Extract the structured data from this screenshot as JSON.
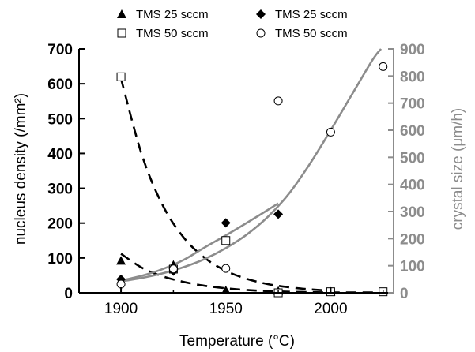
{
  "chart_data": {
    "type": "scatter",
    "xlabel": "Temperature (°C)",
    "ylabel_left": "nucleus density (/mm²)",
    "ylabel_right": "crystal size (μm/h)",
    "xlim": [
      1880,
      2030
    ],
    "ylim_left": [
      0,
      700
    ],
    "ylim_right": [
      0,
      900
    ],
    "x_ticks": [
      1900,
      1950,
      2000
    ],
    "y_ticks_left": [
      0,
      100,
      200,
      300,
      400,
      500,
      600,
      700
    ],
    "y_ticks_right": [
      0,
      100,
      200,
      300,
      400,
      500,
      600,
      700,
      800,
      900
    ],
    "grid": false,
    "legend_position": "top",
    "colors": {
      "left_axis": "#000000",
      "right_axis": "#8c8c8c",
      "fit_curve": "#8c8c8c"
    },
    "series": [
      {
        "name": "TMS 25 sccm",
        "marker": "filled-triangle",
        "axis": "left",
        "x": [
          1900,
          1925,
          1950,
          1975,
          2000
        ],
        "y": [
          92,
          80,
          7,
          5,
          3
        ]
      },
      {
        "name": "TMS 50 sccm",
        "marker": "open-square",
        "axis": "left",
        "x": [
          1900,
          1925,
          1950,
          1975,
          2000,
          2025
        ],
        "y": [
          620,
          68,
          150,
          0,
          3,
          3
        ]
      },
      {
        "name": "TMS 25 sccm",
        "marker": "filled-diamond",
        "axis": "right",
        "x": [
          1900,
          1925,
          1950,
          1975
        ],
        "y": [
          50,
          80,
          258,
          290
        ]
      },
      {
        "name": "TMS 50 sccm",
        "marker": "open-circle",
        "axis": "right",
        "x": [
          1900,
          1925,
          1950,
          1975,
          2000,
          2025
        ],
        "y": [
          32,
          88,
          90,
          708,
          593,
          835
        ]
      }
    ],
    "fit_curves": [
      {
        "style": "dashed",
        "axis": "left",
        "x": [
          1900,
          1910,
          1920,
          1930,
          1940,
          1950,
          1960,
          1970,
          1980,
          1990,
          2000
        ],
        "y": [
          615,
          395,
          250,
          158,
          100,
          63,
          40,
          25,
          16,
          10,
          6
        ]
      },
      {
        "style": "dashed",
        "axis": "left",
        "x": [
          1900,
          1910,
          1920,
          1930,
          1940,
          1950,
          1960,
          1970,
          1980,
          1990,
          2000,
          2010,
          2020,
          2025
        ],
        "y": [
          112,
          72,
          47,
          31,
          20,
          13,
          8,
          5,
          3,
          2,
          1,
          1,
          1,
          0
        ]
      },
      {
        "style": "solid",
        "axis": "right",
        "x": [
          1900,
          1910,
          1920,
          1930,
          1940,
          1950,
          1960,
          1975
        ],
        "y": [
          45,
          63,
          88,
          122,
          168,
          212,
          258,
          330
        ]
      },
      {
        "style": "solid",
        "axis": "right",
        "x": [
          1900,
          1910,
          1920,
          1930,
          1940,
          1950,
          1960,
          1970,
          1980,
          1990,
          2000,
          2010,
          2020,
          2024
        ],
        "y": [
          42,
          55,
          72,
          95,
          125,
          165,
          215,
          280,
          365,
          475,
          600,
          730,
          860,
          900
        ]
      }
    ]
  }
}
